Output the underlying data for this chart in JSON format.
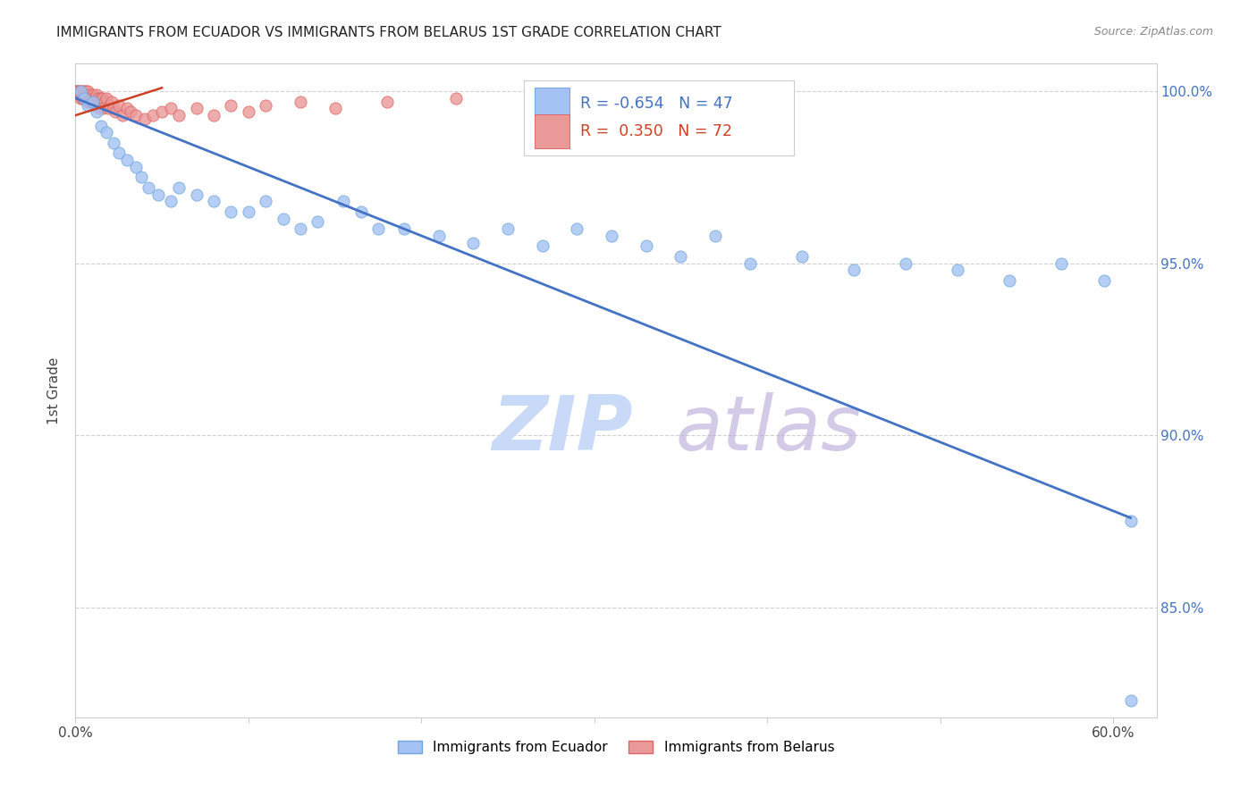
{
  "title": "IMMIGRANTS FROM ECUADOR VS IMMIGRANTS FROM BELARUS 1ST GRADE CORRELATION CHART",
  "source": "Source: ZipAtlas.com",
  "ylabel": "1st Grade",
  "ecuador_color": "#a4c2f4",
  "ecuador_edge_color": "#6fa8dc",
  "belarus_color": "#ea9999",
  "belarus_edge_color": "#e06666",
  "trend_ecuador_color": "#4472c4",
  "trend_belarus_color": "#cc4125",
  "watermark_zip_color": "#c9daf8",
  "watermark_atlas_color": "#b4a7d6",
  "legend_ecuador_label": "Immigrants from Ecuador",
  "legend_belarus_label": "Immigrants from Belarus",
  "R_ecuador": -0.654,
  "N_ecuador": 47,
  "R_belarus": 0.35,
  "N_belarus": 72,
  "xlim": [
    0.0,
    0.625
  ],
  "ylim": [
    0.818,
    1.008
  ],
  "ytick_positions": [
    0.85,
    0.9,
    0.95,
    1.0
  ],
  "ytick_labels": [
    "85.0%",
    "90.0%",
    "95.0%",
    "100.0%"
  ],
  "xtick_positions": [
    0.0,
    0.1,
    0.2,
    0.3,
    0.4,
    0.5,
    0.6
  ],
  "xtick_labels": [
    "0.0%",
    "",
    "",
    "",
    "",
    "",
    "60.0%"
  ],
  "grid_color": "#cccccc",
  "right_tick_color": "#4472c4",
  "background_color": "#ffffff",
  "ecuador_x": [
    0.003,
    0.005,
    0.007,
    0.01,
    0.012,
    0.015,
    0.018,
    0.022,
    0.025,
    0.03,
    0.035,
    0.038,
    0.042,
    0.048,
    0.055,
    0.06,
    0.07,
    0.08,
    0.09,
    0.1,
    0.11,
    0.12,
    0.13,
    0.14,
    0.155,
    0.165,
    0.175,
    0.19,
    0.21,
    0.23,
    0.25,
    0.27,
    0.29,
    0.31,
    0.33,
    0.35,
    0.37,
    0.39,
    0.42,
    0.45,
    0.48,
    0.51,
    0.54,
    0.57,
    0.595,
    0.61,
    0.61
  ],
  "ecuador_y": [
    1.0,
    0.998,
    0.996,
    0.997,
    0.994,
    0.99,
    0.988,
    0.985,
    0.982,
    0.98,
    0.978,
    0.975,
    0.972,
    0.97,
    0.968,
    0.972,
    0.97,
    0.968,
    0.965,
    0.965,
    0.968,
    0.963,
    0.96,
    0.962,
    0.968,
    0.965,
    0.96,
    0.96,
    0.958,
    0.956,
    0.96,
    0.955,
    0.96,
    0.958,
    0.955,
    0.952,
    0.958,
    0.95,
    0.952,
    0.948,
    0.95,
    0.948,
    0.945,
    0.95,
    0.945,
    0.875,
    0.823
  ],
  "belarus_x": [
    0.0005,
    0.001,
    0.0015,
    0.002,
    0.0025,
    0.003,
    0.003,
    0.003,
    0.004,
    0.004,
    0.004,
    0.005,
    0.005,
    0.005,
    0.005,
    0.005,
    0.006,
    0.006,
    0.006,
    0.007,
    0.007,
    0.007,
    0.007,
    0.008,
    0.008,
    0.008,
    0.009,
    0.009,
    0.01,
    0.01,
    0.01,
    0.011,
    0.011,
    0.012,
    0.012,
    0.013,
    0.013,
    0.014,
    0.014,
    0.015,
    0.015,
    0.016,
    0.016,
    0.017,
    0.018,
    0.018,
    0.019,
    0.02,
    0.021,
    0.022,
    0.023,
    0.025,
    0.027,
    0.03,
    0.032,
    0.035,
    0.04,
    0.045,
    0.05,
    0.055,
    0.06,
    0.07,
    0.08,
    0.09,
    0.1,
    0.11,
    0.13,
    0.15,
    0.18,
    0.22,
    0.28,
    0.34
  ],
  "belarus_y": [
    1.0,
    1.0,
    1.0,
    1.0,
    0.999,
    0.999,
    1.0,
    0.998,
    0.999,
    0.998,
    1.0,
    0.999,
    0.998,
    1.0,
    0.999,
    0.998,
    0.998,
    0.999,
    1.0,
    0.999,
    0.998,
    1.0,
    0.997,
    0.998,
    0.997,
    0.999,
    0.998,
    0.997,
    0.999,
    0.998,
    0.997,
    0.998,
    0.996,
    0.997,
    0.999,
    0.998,
    0.996,
    0.997,
    0.995,
    0.998,
    0.996,
    0.998,
    0.995,
    0.997,
    0.996,
    0.998,
    0.995,
    0.996,
    0.997,
    0.995,
    0.994,
    0.996,
    0.993,
    0.995,
    0.994,
    0.993,
    0.992,
    0.993,
    0.994,
    0.995,
    0.993,
    0.995,
    0.993,
    0.996,
    0.994,
    0.996,
    0.997,
    0.995,
    0.997,
    0.998,
    0.995,
    0.997
  ],
  "trend_eq_x0": 0.0,
  "trend_eq_x1": 0.61,
  "trend_eq_y0": 0.998,
  "trend_eq_y1": 0.876,
  "trend_bel_x0": 0.0,
  "trend_bel_x1": 0.05,
  "trend_bel_y0": 0.993,
  "trend_bel_y1": 1.001
}
